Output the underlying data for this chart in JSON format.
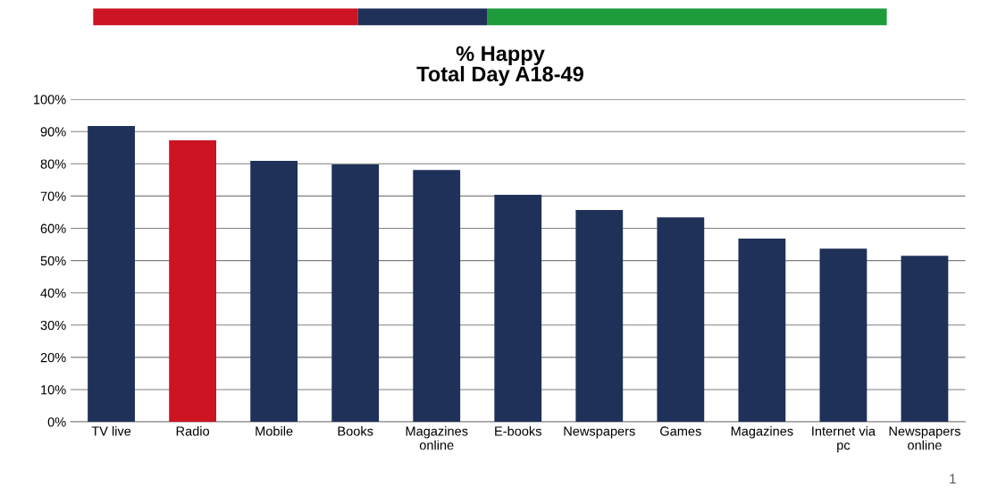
{
  "chart_data": {
    "type": "bar",
    "title": "% Happy\nTotal Day A18-49",
    "categories": [
      "TV live",
      "Radio",
      "Mobile",
      "Books",
      "Magazines\nonline",
      "E-books",
      "Newspapers",
      "Games",
      "Magazines",
      "Internet via\npc",
      "Newspapers\nonline"
    ],
    "values": [
      91.7,
      87.3,
      80.9,
      79.8,
      78.1,
      70.4,
      65.7,
      63.4,
      56.8,
      53.7,
      51.5
    ],
    "colors": [
      "#1f3158",
      "#cc1423",
      "#1f3158",
      "#1f3158",
      "#1f3158",
      "#1f3158",
      "#1f3158",
      "#1f3158",
      "#1f3158",
      "#1f3158",
      "#1f3158"
    ],
    "ylim": [
      0,
      100
    ],
    "yticks": [
      {
        "value": 0,
        "label": "0%"
      },
      {
        "value": 10,
        "label": "10%"
      },
      {
        "value": 20,
        "label": "20%"
      },
      {
        "value": 30,
        "label": "30%"
      },
      {
        "value": 40,
        "label": "40%"
      },
      {
        "value": 50,
        "label": "50%"
      },
      {
        "value": 60,
        "label": "60%"
      },
      {
        "value": 70,
        "label": "70%"
      },
      {
        "value": 80,
        "label": "80%"
      },
      {
        "value": 90,
        "label": "90%"
      },
      {
        "value": 100,
        "label": "100%"
      }
    ],
    "grid": "y",
    "annotations": [
      "1"
    ]
  }
}
